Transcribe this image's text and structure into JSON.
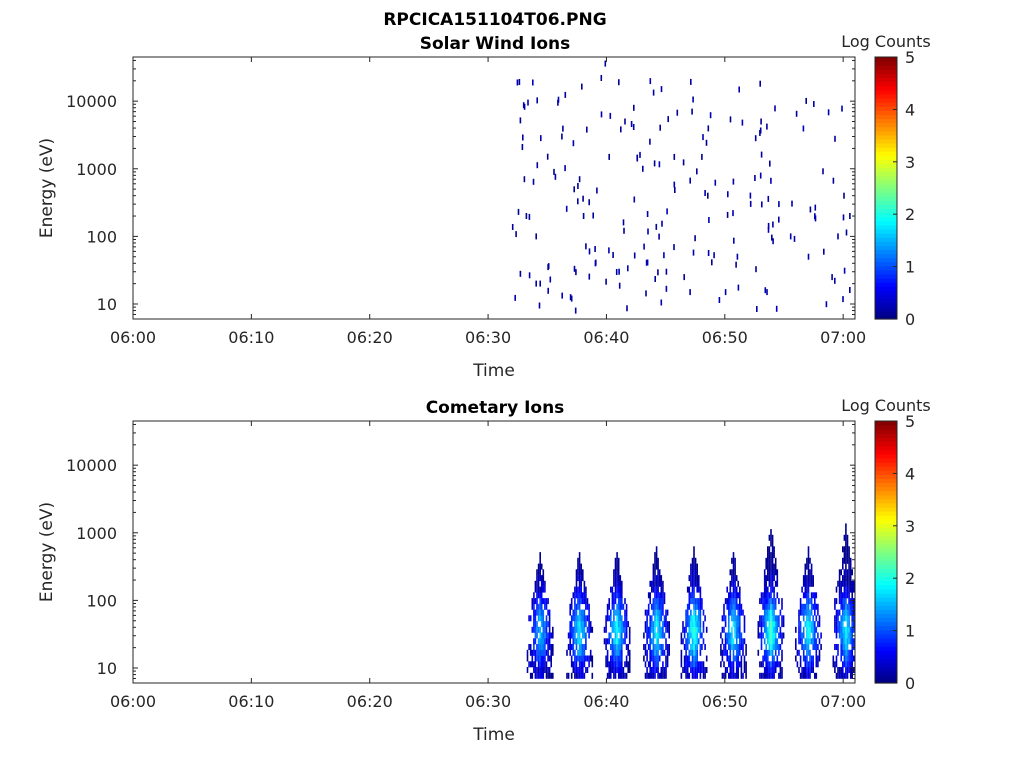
{
  "figure": {
    "title": "RPCICA151104T06.PNG"
  },
  "chart_data": [
    {
      "type": "heatmap",
      "title": "Solar Wind Ions",
      "xlabel": "Time",
      "ylabel": "Energy (eV)",
      "x_ticks": [
        "06:00",
        "06:10",
        "06:20",
        "06:30",
        "06:40",
        "06:50",
        "07:00"
      ],
      "y_ticks": [
        "10",
        "100",
        "1000",
        "10000"
      ],
      "xlim": [
        "06:00",
        "07:01"
      ],
      "ylim": [
        6,
        45000
      ],
      "y_scale": "log",
      "colorbar": {
        "label": "Log Counts",
        "ticks": [
          "0",
          "1",
          "2",
          "3",
          "4",
          "5"
        ],
        "range": [
          0,
          5
        ],
        "colormap": "jet"
      },
      "data_start": "06:32",
      "data_description": "sparse scattered counts near level 0 (dark blue) from about 06:32 to 07:01, energies roughly 6-30000 eV",
      "cells": [
        {
          "t": "06:32:30",
          "e": 230,
          "v": 0.1
        },
        {
          "t": "06:32:40",
          "e": 5200,
          "v": 0.1
        },
        {
          "t": "06:32:50",
          "e": 2100,
          "v": 0.1
        },
        {
          "t": "06:33:00",
          "e": 700,
          "v": 0.1
        },
        {
          "t": "06:33:10",
          "e": 200,
          "v": 0.1
        },
        {
          "t": "06:32:40",
          "e": 28,
          "v": 0.1
        },
        {
          "t": "06:34:00",
          "e": 20,
          "v": 0.2
        },
        {
          "t": "06:34:20",
          "e": 20,
          "v": 0.2
        },
        {
          "t": "06:34:00",
          "e": 100,
          "v": 0.1
        },
        {
          "t": "06:35:30",
          "e": 900,
          "v": 0.1
        },
        {
          "t": "06:35:50",
          "e": 9500,
          "v": 0.1
        },
        {
          "t": "06:36:10",
          "e": 3000,
          "v": 0.1
        },
        {
          "t": "06:37:00",
          "e": 12,
          "v": 0.2
        },
        {
          "t": "06:37:20",
          "e": 8,
          "v": 0.2
        },
        {
          "t": "06:37:40",
          "e": 700,
          "v": 0.1
        },
        {
          "t": "06:38:00",
          "e": 200,
          "v": 0.1
        },
        {
          "t": "06:38:30",
          "e": 60,
          "v": 0.2
        },
        {
          "t": "06:39:00",
          "e": 40,
          "v": 0.2
        },
        {
          "t": "06:39:30",
          "e": 22000,
          "v": 0.1
        },
        {
          "t": "06:39:50",
          "e": 36000,
          "v": 0.1
        },
        {
          "t": "06:40:10",
          "e": 1500,
          "v": 0.1
        },
        {
          "t": "06:41:00",
          "e": 30,
          "v": 0.2
        },
        {
          "t": "06:41:30",
          "e": 5000,
          "v": 0.1
        },
        {
          "t": "06:43:00",
          "e": 1000,
          "v": 0.1
        },
        {
          "t": "06:44:00",
          "e": 1200,
          "v": 0.1
        },
        {
          "t": "06:45:00",
          "e": 30,
          "v": 0.2
        },
        {
          "t": "06:45:40",
          "e": 1500,
          "v": 0.1
        },
        {
          "t": "06:46:30",
          "e": 25,
          "v": 0.2
        },
        {
          "t": "06:47:00",
          "e": 15,
          "v": 0.2
        },
        {
          "t": "06:47:10",
          "e": 7000,
          "v": 0.1
        },
        {
          "t": "06:48:00",
          "e": 1500,
          "v": 0.1
        },
        {
          "t": "06:48:30",
          "e": 400,
          "v": 0.1
        },
        {
          "t": "06:50:00",
          "e": 15,
          "v": 0.2
        },
        {
          "t": "06:51:00",
          "e": 50,
          "v": 0.2
        },
        {
          "t": "06:53:00",
          "e": 5000,
          "v": 0.1
        },
        {
          "t": "06:53:30",
          "e": 15,
          "v": 0.2
        },
        {
          "t": "06:54:00",
          "e": 150,
          "v": 0.2
        },
        {
          "t": "06:54:30",
          "e": 300,
          "v": 0.2
        },
        {
          "t": "06:55:30",
          "e": 100,
          "v": 0.2
        },
        {
          "t": "06:56:00",
          "e": 6500,
          "v": 0.1
        },
        {
          "t": "06:57:00",
          "e": 50,
          "v": 0.2
        },
        {
          "t": "06:57:10",
          "e": 250,
          "v": 0.1
        },
        {
          "t": "06:59:00",
          "e": 25,
          "v": 0.2
        },
        {
          "t": "06:59:30",
          "e": 100,
          "v": 0.2
        },
        {
          "t": "07:00:00",
          "e": 400,
          "v": 0.1
        },
        {
          "t": "07:00:30",
          "e": 200,
          "v": 0.1
        }
      ]
    },
    {
      "type": "heatmap",
      "title": "Cometary Ions",
      "xlabel": "Time",
      "ylabel": "Energy (eV)",
      "x_ticks": [
        "06:00",
        "06:10",
        "06:20",
        "06:30",
        "06:40",
        "06:50",
        "07:00"
      ],
      "y_ticks": [
        "10",
        "100",
        "1000",
        "10000"
      ],
      "xlim": [
        "06:00",
        "07:01"
      ],
      "ylim": [
        6,
        45000
      ],
      "y_scale": "log",
      "colorbar": {
        "label": "Log Counts",
        "ticks": [
          "0",
          "1",
          "2",
          "3",
          "4",
          "5"
        ],
        "range": [
          0,
          5
        ],
        "colormap": "jet"
      },
      "data_start": "06:33",
      "bursts": [
        {
          "center": "06:34:20",
          "top_energy": 500,
          "peak_log_counts": 1.6
        },
        {
          "center": "06:37:40",
          "top_energy": 550,
          "peak_log_counts": 1.8
        },
        {
          "center": "06:40:50",
          "top_energy": 550,
          "peak_log_counts": 1.9
        },
        {
          "center": "06:44:10",
          "top_energy": 650,
          "peak_log_counts": 1.9
        },
        {
          "center": "06:47:20",
          "top_energy": 600,
          "peak_log_counts": 2.1
        },
        {
          "center": "06:50:40",
          "top_energy": 550,
          "peak_log_counts": 1.8
        },
        {
          "center": "06:53:50",
          "top_energy": 1200,
          "peak_log_counts": 2.2
        },
        {
          "center": "06:57:00",
          "top_energy": 600,
          "peak_log_counts": 1.9
        },
        {
          "center": "07:00:10",
          "top_energy": 1300,
          "peak_log_counts": 1.8
        }
      ]
    }
  ]
}
